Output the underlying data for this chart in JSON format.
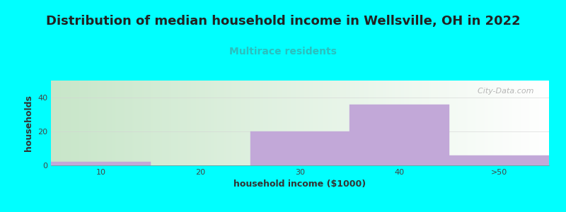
{
  "title": "Distribution of median household income in Wellsville, OH in 2022",
  "subtitle": "Multirace residents",
  "xlabel": "household income ($1000)",
  "ylabel": "households",
  "background_color": "#00FFFF",
  "bar_color": "#C2A8D8",
  "bar_edge_color": "#C2A8D8",
  "bar_lefts": [
    5,
    15,
    25,
    35,
    45
  ],
  "bar_widths": [
    10,
    10,
    10,
    10,
    10
  ],
  "bar_heights": [
    2,
    0,
    20,
    36,
    6
  ],
  "xlim": [
    5,
    55
  ],
  "ylim": [
    0,
    50
  ],
  "yticks": [
    0,
    20,
    40
  ],
  "xticks": [
    10,
    20,
    30,
    40,
    50
  ],
  "xticklabels": [
    "10",
    "20",
    "30",
    "40",
    ">50"
  ],
  "plot_bg_gradient_left": "#c8e6c9",
  "plot_bg_gradient_right": "#ffffff",
  "title_fontsize": 13,
  "subtitle_fontsize": 10,
  "subtitle_color": "#2ABFBF",
  "axis_label_fontsize": 9,
  "tick_fontsize": 8,
  "watermark_text": "  City-Data.com",
  "watermark_color": "#AAAAAA"
}
